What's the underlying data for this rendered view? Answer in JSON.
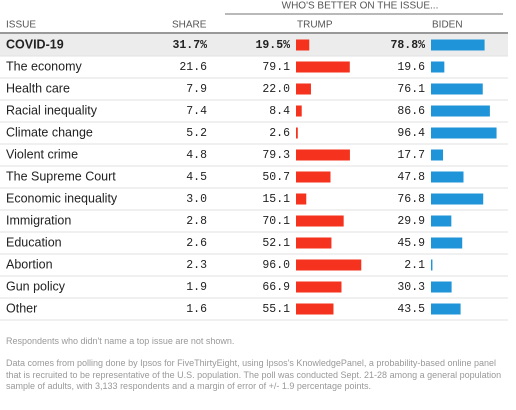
{
  "header": {
    "issue": "ISSUE",
    "share": "SHARE",
    "group": "WHO'S BETTER ON THE ISSUE...",
    "trump": "TRUMP",
    "biden": "BIDEN"
  },
  "table": {
    "rows": [
      {
        "issue": "COVID-19",
        "share": {
          "value": 31.7,
          "label": "31.7%"
        },
        "trump": {
          "value": 19.5,
          "label": "19.5%"
        },
        "biden": {
          "value": 78.8,
          "label": "78.8%"
        }
      },
      {
        "issue": "The economy",
        "share": 21.6,
        "trump": 79.1,
        "biden": 19.6
      },
      {
        "issue": "Health care",
        "share": 7.9,
        "trump": {
          "value": 22,
          "label": "22.0"
        },
        "biden": 76.1
      },
      {
        "issue": "Racial inequality",
        "share": 7.4,
        "trump": 8.4,
        "biden": 86.6
      },
      {
        "issue": "Climate change",
        "share": 5.2,
        "trump": 2.6,
        "biden": 96.4
      },
      {
        "issue": "Violent crime",
        "share": 4.8,
        "trump": 79.3,
        "biden": 17.7
      },
      {
        "issue": "The Supreme Court",
        "share": 4.5,
        "trump": 50.7,
        "biden": 47.8
      },
      {
        "issue": "Economic inequality",
        "share": {
          "value": 3,
          "label": "3.0"
        },
        "trump": 15.1,
        "biden": 76.8
      },
      {
        "issue": "Immigration",
        "share": 2.8,
        "trump": 70.1,
        "biden": 29.9
      },
      {
        "issue": "Education",
        "share": 2.6,
        "trump": 52.1,
        "biden": 45.9
      },
      {
        "issue": "Abortion",
        "share": 2.3,
        "trump": {
          "value": 96,
          "label": "96.0"
        },
        "biden": 2.1
      },
      {
        "issue": "Gun policy",
        "share": 1.9,
        "trump": 66.9,
        "biden": 30.3
      },
      {
        "issue": "Other",
        "share": 1.6,
        "trump": 55.1,
        "biden": 43.5
      }
    ]
  },
  "trump_color": "#f5321e",
  "biden_color": "#1f94d8",
  "notes": [
    "Respondents who didn't name a top issue are not shown.",
    "Data comes from polling done by Ipsos for FiveThirtyEight, using Ipsos's KnowledgePanel, a probability-based online panel that is recruited to be representative of the U.S. population. The poll was conducted Sept. 21-28 among a general population sample of adults, with 3,133 respondents and a margin of error of +/- 1.9 percentage points."
  ]
}
